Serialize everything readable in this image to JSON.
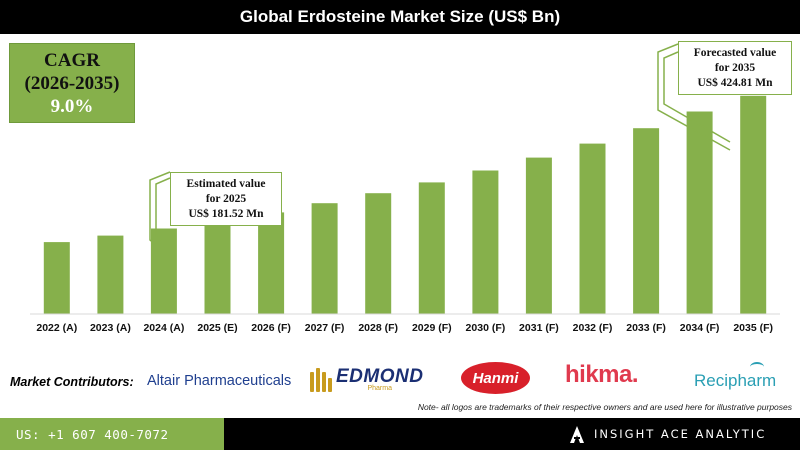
{
  "title": "Global Erdosteine Market Size (US$ Bn)",
  "cagr": {
    "line1": "CAGR",
    "line2": "(2026-2035)",
    "value": "9.0%"
  },
  "callouts": {
    "c2025": {
      "line1": "Estimated value",
      "line2": "for 2025",
      "line3": "US$ 181.52 Mn"
    },
    "c2035": {
      "line1": "Forecasted value",
      "line2": "for 2035",
      "line3": "US$ 424.81 Mn"
    }
  },
  "chart_data": {
    "type": "bar",
    "title": "Global Erdosteine Market Size (US$ Bn)",
    "categories": [
      "2022 (A)",
      "2023 (A)",
      "2024 (A)",
      "2025 (E)",
      "2026 (F)",
      "2027 (F)",
      "2028 (F)",
      "2029 (F)",
      "2030 (F)",
      "2031 (F)",
      "2032 (F)",
      "2033 (F)",
      "2034 (F)",
      "2035 (F)"
    ],
    "values": [
      140.0,
      152.6,
      166.4,
      181.52,
      197.9,
      215.7,
      235.1,
      256.2,
      279.3,
      304.4,
      331.8,
      361.7,
      394.2,
      424.81
    ],
    "ylim": [
      0,
      440
    ],
    "grid": false,
    "legend": "none",
    "bar_color": "#86b04b"
  },
  "contributors": {
    "label": "Market Contributors:",
    "altair": "Altair Pharmaceuticals",
    "edmond": "EDMOND",
    "edmond_sub": "Pharma",
    "hanmi": "Hanmi",
    "hikma": "hikma.",
    "recipharm": "Recipharm"
  },
  "note": "Note- all logos are trademarks of their respective owners and are used here for illustrative purposes",
  "footer": {
    "phone": "US: +1 607 400-7072",
    "brand": "INSIGHT ACE ANALYTIC"
  },
  "colors": {
    "accent": "#86b04b",
    "dark": "#000000"
  }
}
